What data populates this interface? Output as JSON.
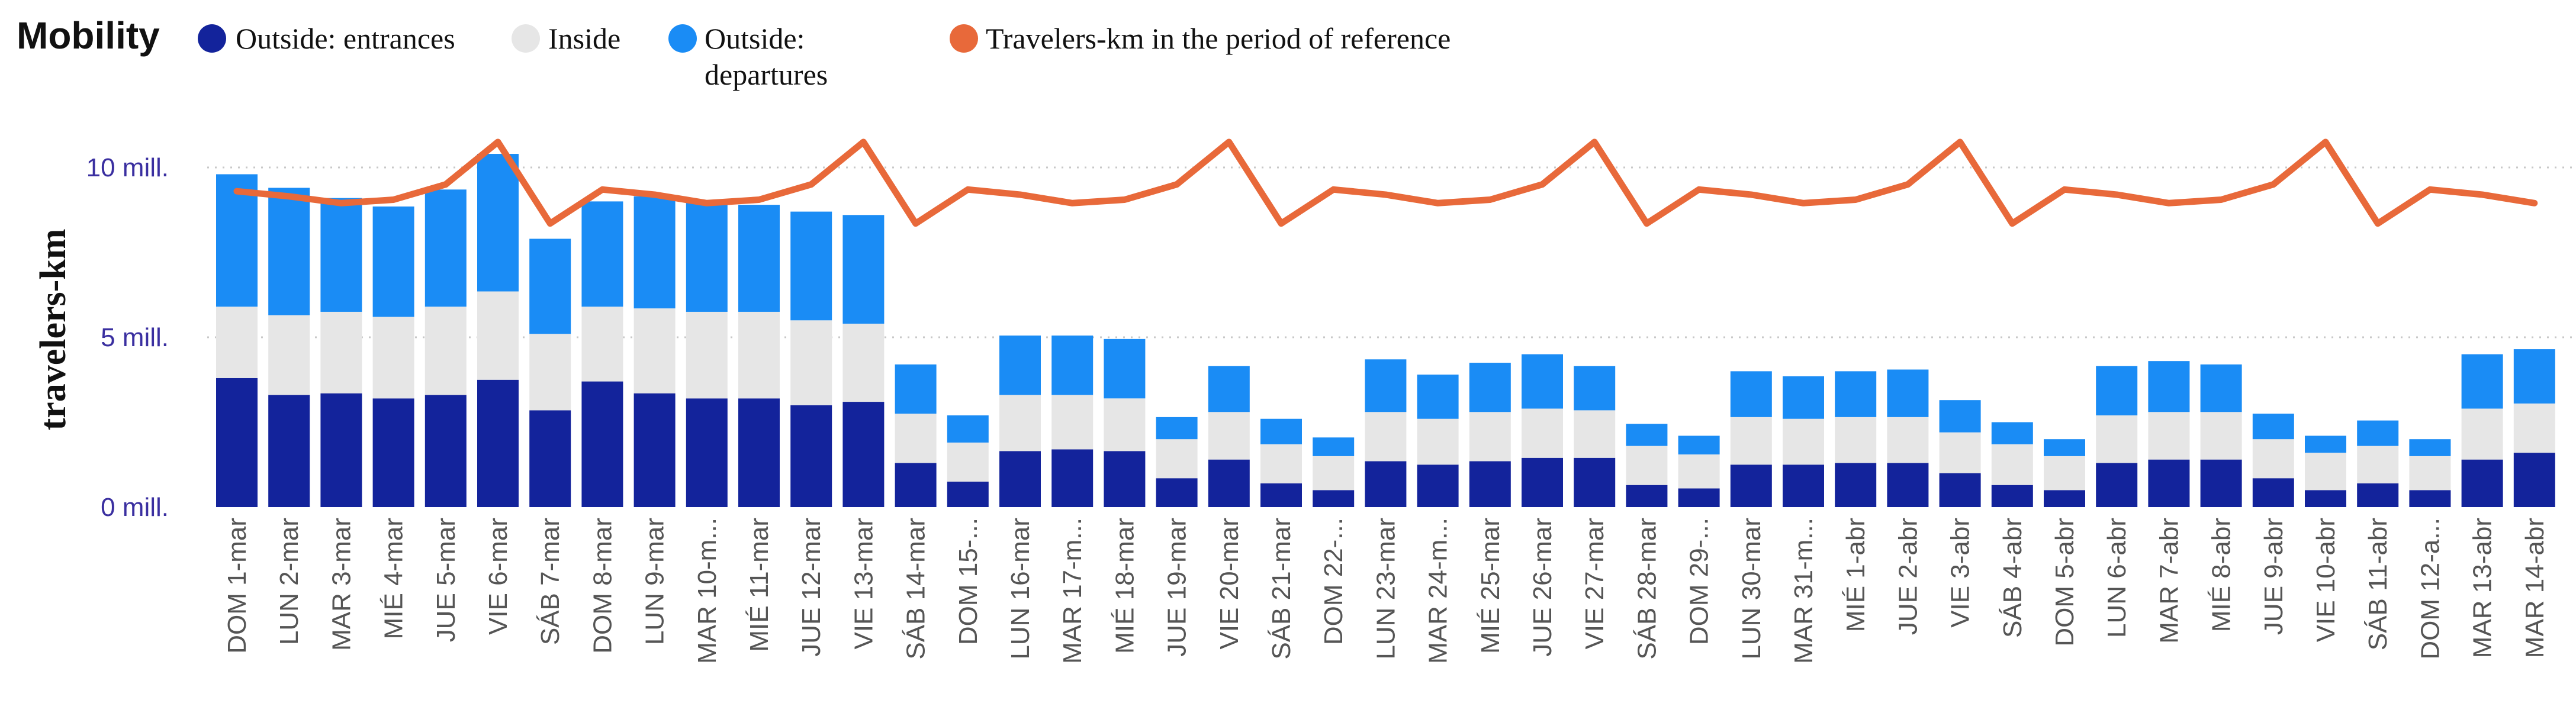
{
  "title": "Mobility",
  "legend": [
    {
      "label": "Outside: entrances",
      "color": "#13239b"
    },
    {
      "label": "Inside",
      "color": "#e6e6e6"
    },
    {
      "label": "Outside:",
      "label2": "departures",
      "color": "#1a8cf5"
    },
    {
      "label": "Travelers-km in the period of reference",
      "color": "#e8693a"
    }
  ],
  "chart_data": {
    "type": "stacked-bar+line",
    "title": "Mobility",
    "ylabel": "travelers-km",
    "xlabel": "",
    "ylim": [
      0,
      11000000
    ],
    "yticks": [
      {
        "value": 0,
        "label": "0 mill."
      },
      {
        "value": 5000000,
        "label": "5 mill."
      },
      {
        "value": 10000000,
        "label": "10 mill."
      }
    ],
    "categories": [
      "DOM 1-mar",
      "LUN 2-mar",
      "MAR 3-mar",
      "MIÉ 4-mar",
      "JUE 5-mar",
      "VIE 6-mar",
      "SÁB 7-mar",
      "DOM 8-mar",
      "LUN 9-mar",
      "MAR 10-m...",
      "MIÉ 11-mar",
      "JUE 12-mar",
      "VIE 13-mar",
      "SÁB 14-mar",
      "DOM 15-...",
      "LUN 16-mar",
      "MAR 17-m...",
      "MIÉ 18-mar",
      "JUE 19-mar",
      "VIE 20-mar",
      "SÁB 21-mar",
      "DOM 22-...",
      "LUN 23-mar",
      "MAR 24-m...",
      "MIÉ 25-mar",
      "JUE 26-mar",
      "VIE 27-mar",
      "SÁB 28-mar",
      "DOM 29-...",
      "LUN 30-mar",
      "MAR 31-m...",
      "MIÉ 1-abr",
      "JUE 2-abr",
      "VIE 3-abr",
      "SÁB 4-abr",
      "DOM 5-abr",
      "LUN 6-abr",
      "MAR 7-abr",
      "MIÉ 8-abr",
      "JUE 9-abr",
      "VIE 10-abr",
      "SÁB 11-abr",
      "DOM 12-a...",
      "MAR 13-abr",
      "MAR 14-abr"
    ],
    "series": [
      {
        "name": "Outside: entrances",
        "color": "#13239b",
        "values": [
          3800000,
          3300000,
          3350000,
          3200000,
          3300000,
          3750000,
          2850000,
          3700000,
          3350000,
          3200000,
          3200000,
          3000000,
          3100000,
          1300000,
          750000,
          1650000,
          1700000,
          1650000,
          850000,
          1400000,
          700000,
          500000,
          1350000,
          1250000,
          1350000,
          1450000,
          1450000,
          650000,
          550000,
          1250000,
          1250000,
          1300000,
          1300000,
          1000000,
          650000,
          500000,
          1300000,
          1400000,
          1400000,
          850000,
          500000,
          700000,
          500000,
          1400000,
          1600000
        ]
      },
      {
        "name": "Inside",
        "color": "#e6e6e6",
        "values": [
          2100000,
          2350000,
          2400000,
          2400000,
          2600000,
          2600000,
          2250000,
          2200000,
          2500000,
          2550000,
          2550000,
          2500000,
          2300000,
          1450000,
          1150000,
          1650000,
          1600000,
          1550000,
          1150000,
          1400000,
          1150000,
          1000000,
          1450000,
          1350000,
          1450000,
          1450000,
          1400000,
          1150000,
          1000000,
          1400000,
          1350000,
          1350000,
          1350000,
          1200000,
          1200000,
          1000000,
          1400000,
          1400000,
          1400000,
          1150000,
          1100000,
          1100000,
          1000000,
          1500000,
          1450000
        ]
      },
      {
        "name": "Outside: departures",
        "color": "#1a8cf5",
        "values": [
          3900000,
          3750000,
          3350000,
          3250000,
          3450000,
          4050000,
          2800000,
          3100000,
          3300000,
          3250000,
          3150000,
          3200000,
          3200000,
          1450000,
          800000,
          1750000,
          1750000,
          1750000,
          650000,
          1350000,
          750000,
          550000,
          1550000,
          1300000,
          1450000,
          1600000,
          1300000,
          650000,
          550000,
          1350000,
          1250000,
          1350000,
          1400000,
          950000,
          650000,
          500000,
          1450000,
          1500000,
          1400000,
          750000,
          500000,
          750000,
          500000,
          1600000,
          1600000
        ]
      },
      {
        "name": "Travelers-km in the period of reference",
        "color": "#e8693a",
        "type": "line",
        "values": [
          9300000,
          9150000,
          8950000,
          9050000,
          9500000,
          10750000,
          8350000,
          9350000,
          9200000,
          8950000,
          9050000,
          9500000,
          10750000,
          8350000,
          9350000,
          9200000,
          8950000,
          9050000,
          9500000,
          10750000,
          8350000,
          9350000,
          9200000,
          8950000,
          9050000,
          9500000,
          10750000,
          8350000,
          9350000,
          9200000,
          8950000,
          9050000,
          9500000,
          10750000,
          8350000,
          9350000,
          9200000,
          8950000,
          9050000,
          9500000,
          10750000,
          8350000,
          9350000,
          9200000,
          8950000
        ]
      }
    ]
  }
}
